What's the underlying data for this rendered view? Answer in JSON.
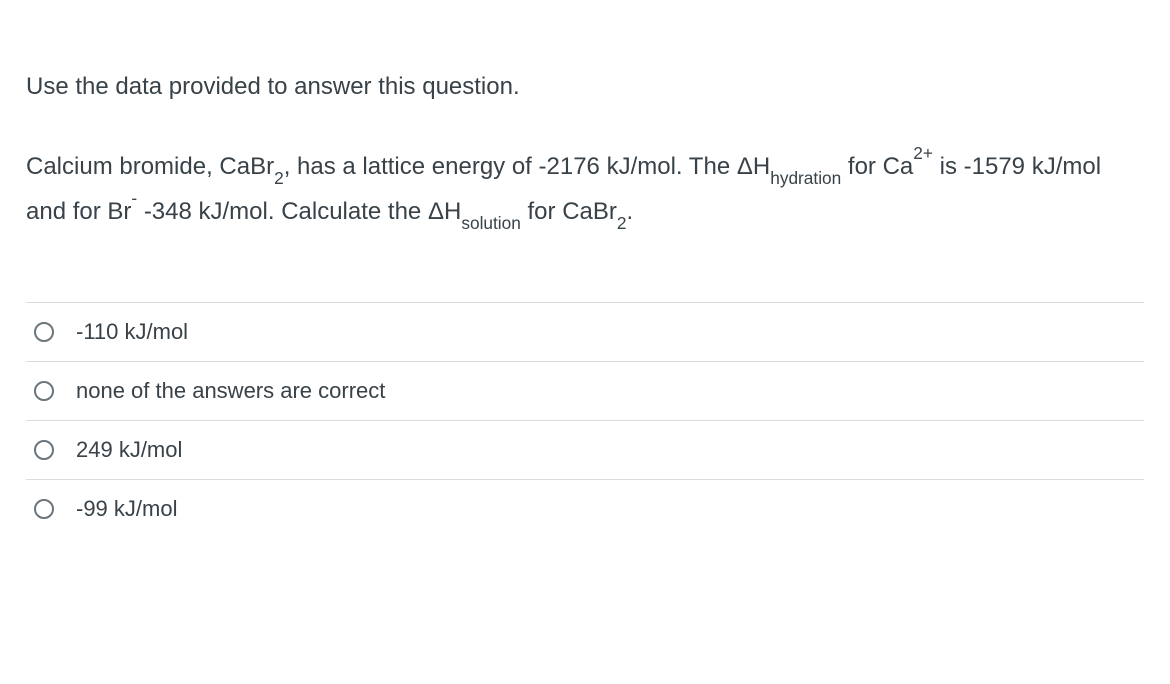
{
  "instruction": "Use the data provided to answer this question.",
  "question": {
    "compound_name": "Calcium  bromide",
    "formula_base": "CaBr",
    "formula_sub": "2",
    "lattice_energy": "-2176 kJ/mol",
    "dh_label": "ΔH",
    "hydration_sub": "hydration",
    "ion1_base": "Ca",
    "ion1_sup": "2+",
    "ion1_value": "-1579 kJ/mol",
    "ion2_base": "Br",
    "ion2_sup": "-",
    "ion2_value": "-348 kJ/mol",
    "solution_sub": "solution",
    "final_formula_base": "CaBr",
    "final_formula_sub": "2"
  },
  "options": [
    {
      "label": "-110 kJ/mol"
    },
    {
      "label": "none of the answers are correct"
    },
    {
      "label": "249 kJ/mol"
    },
    {
      "label": "-99 kJ/mol"
    }
  ]
}
